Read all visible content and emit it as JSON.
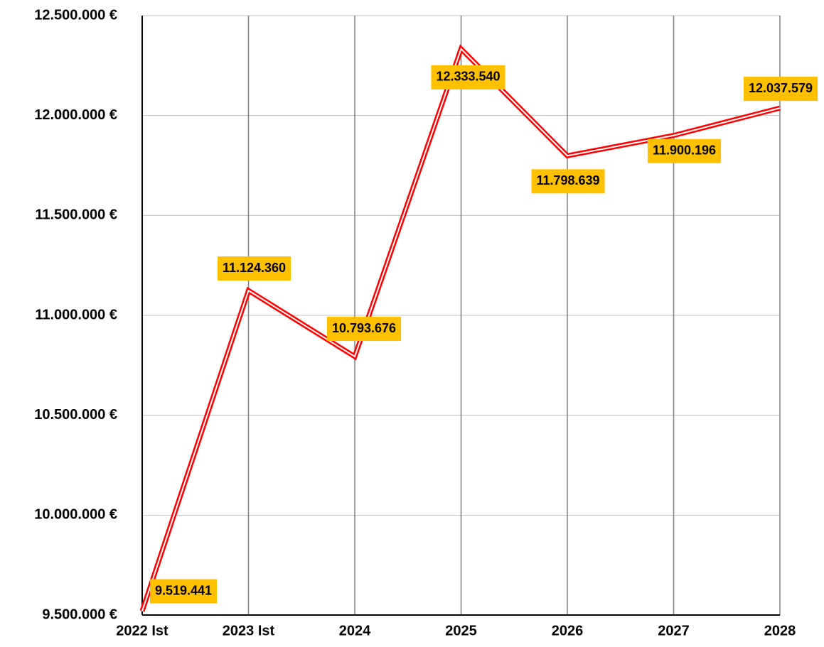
{
  "chart_data": {
    "type": "line",
    "categories": [
      "2022 Ist",
      "2023 Ist",
      "2024",
      "2025",
      "2026",
      "2027",
      "2028"
    ],
    "series": [
      {
        "color": "#ff0000",
        "values": [
          9519441,
          11124360,
          10793676,
          12333540,
          11798639,
          11900196,
          12037579
        ],
        "value_labels": [
          "9.519.441",
          "11.124.360",
          "10.793.676",
          "12.333.540",
          "11.798.639",
          "11.900.196",
          "12.037.579"
        ]
      }
    ],
    "ylim": [
      9500000,
      12500000
    ],
    "yticks": [
      {
        "value": 9500000,
        "label": "9.500.000 €"
      },
      {
        "value": 10000000,
        "label": "10.000.000 €"
      },
      {
        "value": 10500000,
        "label": "10.500.000 €"
      },
      {
        "value": 11000000,
        "label": "11.000.000 €"
      },
      {
        "value": 11500000,
        "label": "11.500.000 €"
      },
      {
        "value": 12000000,
        "label": "12.000.000 €"
      },
      {
        "value": 12500000,
        "label": "12.500.000 €"
      }
    ],
    "grid": true,
    "label_color": "#ffc000"
  }
}
